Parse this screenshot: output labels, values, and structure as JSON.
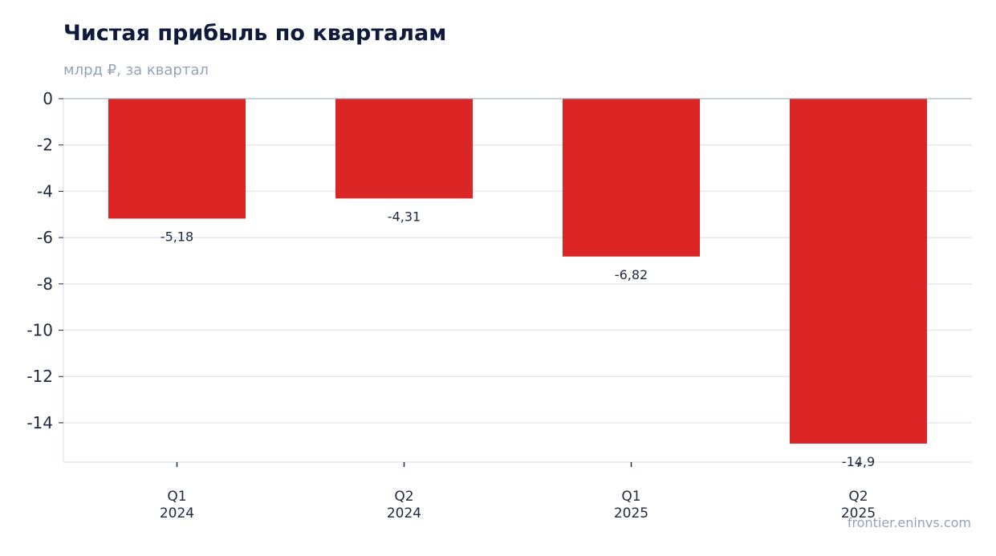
{
  "header": {
    "title": "Чистая прибыль по кварталам",
    "subtitle": "млрд ₽, за квартал"
  },
  "footer": {
    "source": "frontier.eninvs.com"
  },
  "colors": {
    "bar": "#dc2626",
    "title": "#0f1b3d",
    "muted": "#94a3b8",
    "grid": "#e2e8f0",
    "text": "#1e293b"
  },
  "chart_data": {
    "type": "bar",
    "categories": [
      [
        "Q1",
        "2024"
      ],
      [
        "Q2",
        "2024"
      ],
      [
        "Q1",
        "2025"
      ],
      [
        "Q2",
        "2025"
      ]
    ],
    "values": [
      -5.18,
      -4.31,
      -6.82,
      -14.9
    ],
    "value_labels": [
      "-5,18",
      "-4,31",
      "-6,82",
      "-14,9"
    ],
    "yticks": [
      0,
      -2,
      -4,
      -6,
      -8,
      -10,
      -12,
      -14
    ],
    "ylim": [
      -15.7,
      0
    ],
    "title": "Чистая прибыль по кварталам",
    "subtitle": "млрд ₽, за квартал",
    "grid": true
  }
}
